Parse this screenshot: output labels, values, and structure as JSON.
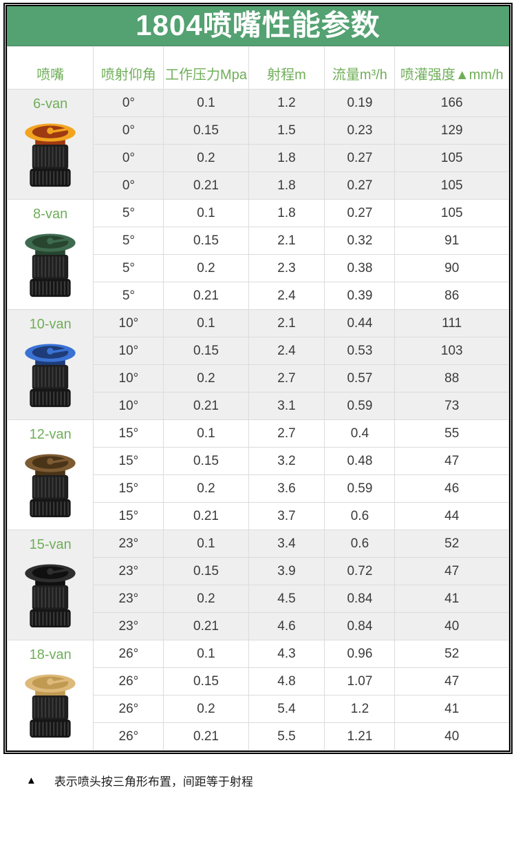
{
  "title": "1804喷嘴性能参数",
  "table": {
    "headers": [
      "喷嘴",
      "喷射仰角",
      "工作压力Mpa",
      "射程m",
      "流量m³/h",
      "喷灌强度▲mm/h"
    ],
    "sections": [
      {
        "model": "6-van",
        "shaded": true,
        "cap_color": "#F2A41F",
        "cap_inner": "#9E3A12",
        "rows": [
          {
            "angle": "0°",
            "pressure": "0.1",
            "range": "1.2",
            "flow": "0.19",
            "intensity": "166"
          },
          {
            "angle": "0°",
            "pressure": "0.15",
            "range": "1.5",
            "flow": "0.23",
            "intensity": "129"
          },
          {
            "angle": "0°",
            "pressure": "0.2",
            "range": "1.8",
            "flow": "0.27",
            "intensity": "105"
          },
          {
            "angle": "0°",
            "pressure": "0.21",
            "range": "1.8",
            "flow": "0.27",
            "intensity": "105"
          }
        ]
      },
      {
        "model": "8-van",
        "shaded": false,
        "cap_color": "#3E6B4F",
        "cap_inner": "#27452F",
        "rows": [
          {
            "angle": "5°",
            "pressure": "0.1",
            "range": "1.8",
            "flow": "0.27",
            "intensity": "105"
          },
          {
            "angle": "5°",
            "pressure": "0.15",
            "range": "2.1",
            "flow": "0.32",
            "intensity": "91"
          },
          {
            "angle": "5°",
            "pressure": "0.2",
            "range": "2.3",
            "flow": "0.38",
            "intensity": "90"
          },
          {
            "angle": "5°",
            "pressure": "0.21",
            "range": "2.4",
            "flow": "0.39",
            "intensity": "86"
          }
        ]
      },
      {
        "model": "10-van",
        "shaded": true,
        "cap_color": "#3A72D4",
        "cap_inner": "#1E3C77",
        "rows": [
          {
            "angle": "10°",
            "pressure": "0.1",
            "range": "2.1",
            "flow": "0.44",
            "intensity": "111"
          },
          {
            "angle": "10°",
            "pressure": "0.15",
            "range": "2.4",
            "flow": "0.53",
            "intensity": "103"
          },
          {
            "angle": "10°",
            "pressure": "0.2",
            "range": "2.7",
            "flow": "0.57",
            "intensity": "88"
          },
          {
            "angle": "10°",
            "pressure": "0.21",
            "range": "3.1",
            "flow": "0.59",
            "intensity": "73"
          }
        ]
      },
      {
        "model": "12-van",
        "shaded": false,
        "cap_color": "#7C5A32",
        "cap_inner": "#4A3418",
        "rows": [
          {
            "angle": "15°",
            "pressure": "0.1",
            "range": "2.7",
            "flow": "0.4",
            "intensity": "55"
          },
          {
            "angle": "15°",
            "pressure": "0.15",
            "range": "3.2",
            "flow": "0.48",
            "intensity": "47"
          },
          {
            "angle": "15°",
            "pressure": "0.2",
            "range": "3.6",
            "flow": "0.59",
            "intensity": "46"
          },
          {
            "angle": "15°",
            "pressure": "0.21",
            "range": "3.7",
            "flow": "0.6",
            "intensity": "44"
          }
        ]
      },
      {
        "model": "15-van",
        "shaded": true,
        "cap_color": "#2E2E2E",
        "cap_inner": "#101010",
        "rows": [
          {
            "angle": "23°",
            "pressure": "0.1",
            "range": "3.4",
            "flow": "0.6",
            "intensity": "52"
          },
          {
            "angle": "23°",
            "pressure": "0.15",
            "range": "3.9",
            "flow": "0.72",
            "intensity": "47"
          },
          {
            "angle": "23°",
            "pressure": "0.2",
            "range": "4.5",
            "flow": "0.84",
            "intensity": "41"
          },
          {
            "angle": "23°",
            "pressure": "0.21",
            "range": "4.6",
            "flow": "0.84",
            "intensity": "40"
          }
        ]
      },
      {
        "model": "18-van",
        "shaded": false,
        "cap_color": "#DDB97A",
        "cap_inner": "#C19A52",
        "rows": [
          {
            "angle": "26°",
            "pressure": "0.1",
            "range": "4.3",
            "flow": "0.96",
            "intensity": "52"
          },
          {
            "angle": "26°",
            "pressure": "0.15",
            "range": "4.8",
            "flow": "1.07",
            "intensity": "47"
          },
          {
            "angle": "26°",
            "pressure": "0.2",
            "range": "5.4",
            "flow": "1.2",
            "intensity": "41"
          },
          {
            "angle": "26°",
            "pressure": "0.21",
            "range": "5.5",
            "flow": "1.21",
            "intensity": "40"
          }
        ]
      }
    ]
  },
  "footnote": {
    "marker": "▲",
    "text": "表示喷头按三角形布置，间距等于射程"
  },
  "colors": {
    "banner_bg": "#54A171",
    "title_text": "#FFFFFF",
    "header_text": "#6FAE58",
    "model_text": "#6FAE58",
    "section_shade": "#EFEFEF",
    "grid_line": "#DBDBDB",
    "frame_border": "#000000",
    "body_text": "#3A3A3A"
  }
}
